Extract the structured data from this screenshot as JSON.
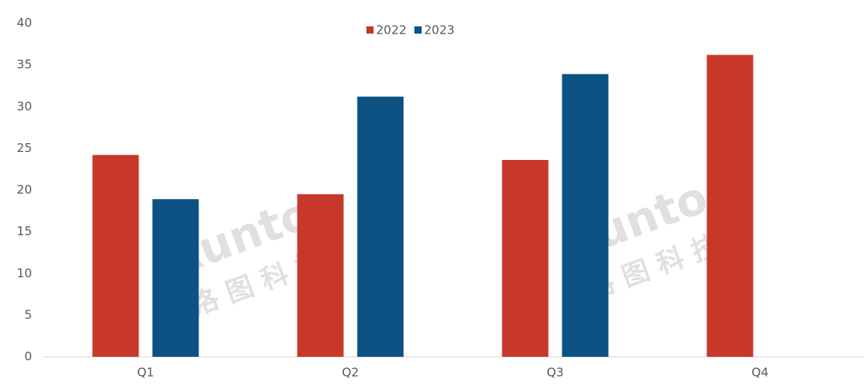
{
  "chart_data": {
    "type": "bar",
    "categories": [
      "Q1",
      "Q2",
      "Q3",
      "Q4"
    ],
    "series": [
      {
        "name": "2022",
        "color": "#c8382a",
        "values": [
          24.2,
          19.5,
          23.6,
          36.2
        ]
      },
      {
        "name": "2023",
        "color": "#0b5283",
        "values": [
          18.9,
          31.2,
          33.9,
          null
        ]
      }
    ],
    "ylim": [
      0,
      40
    ],
    "yticks": [
      0,
      5,
      10,
      15,
      20,
      25,
      30,
      35,
      40
    ],
    "grid": false,
    "legend": "top",
    "watermark": {
      "brand": "Runto",
      "name": "洛图科技"
    }
  }
}
